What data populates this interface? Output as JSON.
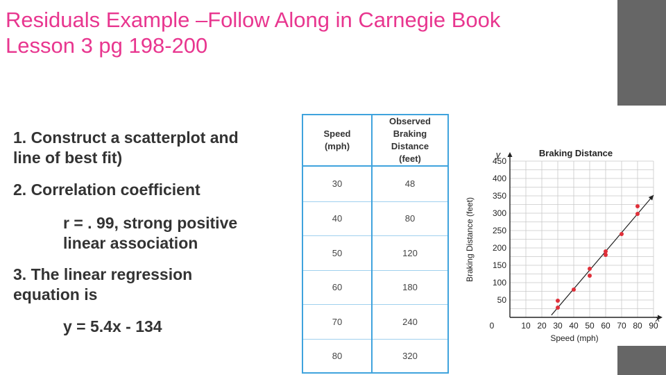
{
  "title": {
    "line1": "Residuals Example –Follow Along in Carnegie Book",
    "line2": "Lesson 3 pg 198-200"
  },
  "content": {
    "item1_line1": "1. Construct a scatterplot and",
    "item1_line2": "line of best fit)",
    "item2": "2. Correlation coefficient",
    "item2_sub_line1": "r = . 99, strong positive",
    "item2_sub_line2": "linear association",
    "item3_line1": "3. The linear regression",
    "item3_line2": "equation is",
    "item3_sub": "y = 5.4x - 134"
  },
  "table": {
    "headers": {
      "speed_line1": "Speed",
      "speed_line2": "(mph)",
      "dist_line1": "Observed",
      "dist_line2": "Braking",
      "dist_line3": "Distance",
      "dist_line4": "(feet)"
    },
    "rows": [
      {
        "speed": "30",
        "distance": "48"
      },
      {
        "speed": "40",
        "distance": "80"
      },
      {
        "speed": "50",
        "distance": "120"
      },
      {
        "speed": "60",
        "distance": "180"
      },
      {
        "speed": "70",
        "distance": "240"
      },
      {
        "speed": "80",
        "distance": "320"
      }
    ]
  },
  "colors": {
    "title": "#e8368f",
    "table_border": "#3fa3dd",
    "point": "#e0303a",
    "sidebar": "#666666"
  },
  "chart_data": {
    "type": "scatter",
    "title": "Braking Distance",
    "xlabel": "Speed (mph)",
    "ylabel": "Braking Distance (feet)",
    "x_axis_letter": "x",
    "y_axis_letter": "y",
    "origin_label": "0",
    "xlim": [
      0,
      90
    ],
    "ylim": [
      0,
      450
    ],
    "xticks": [
      "10",
      "20",
      "30",
      "40",
      "50",
      "60",
      "70",
      "80",
      "90"
    ],
    "yticks": [
      "50",
      "100",
      "150",
      "200",
      "250",
      "300",
      "350",
      "400",
      "450"
    ],
    "grid": true,
    "points": [
      {
        "x": 30,
        "y": 48
      },
      {
        "x": 30,
        "y": 28
      },
      {
        "x": 40,
        "y": 80
      },
      {
        "x": 50,
        "y": 140
      },
      {
        "x": 50,
        "y": 120
      },
      {
        "x": 60,
        "y": 190
      },
      {
        "x": 60,
        "y": 180
      },
      {
        "x": 70,
        "y": 240
      },
      {
        "x": 80,
        "y": 320
      },
      {
        "x": 80,
        "y": 298
      }
    ],
    "trend_line": {
      "slope": 5.4,
      "intercept": -134,
      "x_start": 26,
      "x_end": 90
    }
  }
}
